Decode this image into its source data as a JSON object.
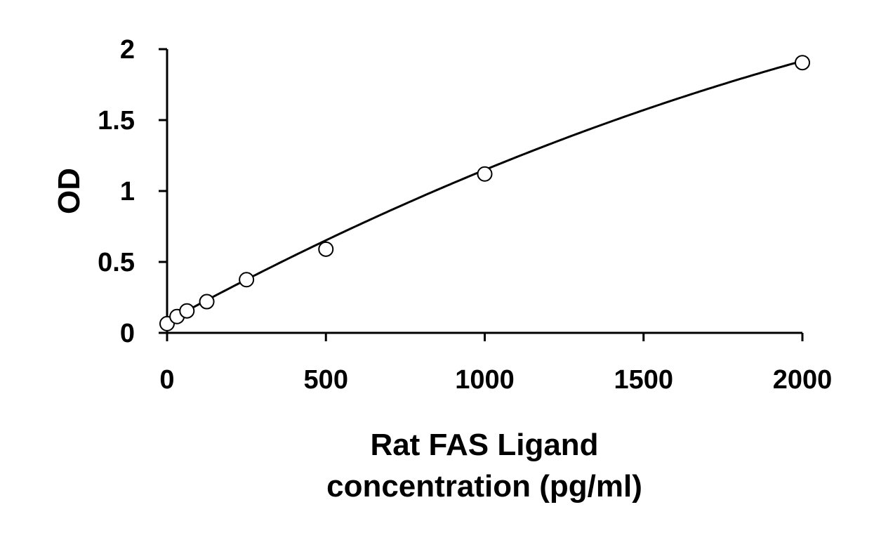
{
  "chart_data": {
    "type": "scatter",
    "xlabel_lines": [
      "Rat FAS Ligand",
      "concentration (pg/ml)"
    ],
    "ylabel": "OD",
    "xlim": [
      0,
      2000
    ],
    "ylim": [
      0,
      2
    ],
    "xticks": [
      0,
      500,
      1000,
      1500,
      2000
    ],
    "yticks": [
      0,
      0.5,
      1,
      1.5,
      2
    ],
    "xtick_labels": [
      "0",
      "500",
      "1000",
      "1500",
      "2000"
    ],
    "ytick_labels": [
      "0",
      "0.5",
      "1",
      "1.5",
      "2"
    ],
    "grid": false,
    "legend": "none",
    "series": [
      {
        "marker": "open-circle",
        "points": [
          {
            "x": 0,
            "y": 0.065
          },
          {
            "x": 31.25,
            "y": 0.115
          },
          {
            "x": 62.5,
            "y": 0.155
          },
          {
            "x": 125,
            "y": 0.22
          },
          {
            "x": 250,
            "y": 0.375
          },
          {
            "x": 500,
            "y": 0.59
          },
          {
            "x": 1000,
            "y": 1.12
          },
          {
            "x": 2000,
            "y": 1.905
          }
        ]
      }
    ],
    "fit": {
      "type": "polynomial-2",
      "coefficients": [
        0.0808,
        0.001218,
        -1.5e-07
      ]
    }
  }
}
